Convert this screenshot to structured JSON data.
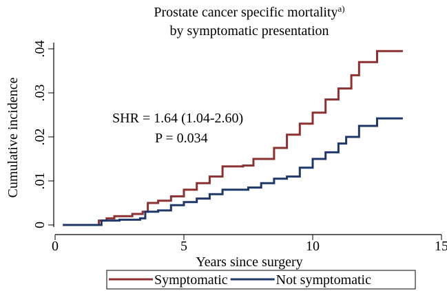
{
  "chart_data": {
    "type": "step",
    "title": "Prostate cancer specific mortality",
    "title_superscript": "a)",
    "subtitle": "by symptomatic presentation",
    "xlabel": "Years since surgery",
    "ylabel": "Cumulative incidence",
    "annotations": [
      "SHR = 1.64 (1.04-2.60)",
      "P = 0.034"
    ],
    "xlim": [
      0,
      15
    ],
    "xticks": [
      0,
      5,
      10,
      15
    ],
    "ylim": [
      0,
      0.04
    ],
    "yticks": [
      0,
      {
        "value": 0.01,
        "label": ".01"
      },
      {
        "value": 0.02,
        "label": ".02"
      },
      {
        "value": 0.03,
        "label": ".03"
      },
      {
        "value": 0.04,
        "label": ".04"
      }
    ],
    "legend": "bottom",
    "series": [
      {
        "name": "Symptomatic",
        "color": "#8b3131",
        "x": [
          0.3,
          1.5,
          1.7,
          2.0,
          2.3,
          3.0,
          3.4,
          3.6,
          4.0,
          4.5,
          5.0,
          5.5,
          6.0,
          6.5,
          7.3,
          7.7,
          8.5,
          9.0,
          9.5,
          10.0,
          10.5,
          11.0,
          11.5,
          11.8,
          12.5,
          13.5
        ],
        "values": [
          0,
          0,
          0.001,
          0.0015,
          0.002,
          0.0025,
          0.003,
          0.005,
          0.0055,
          0.0065,
          0.008,
          0.0095,
          0.011,
          0.0133,
          0.0135,
          0.015,
          0.0175,
          0.0205,
          0.023,
          0.0255,
          0.0285,
          0.031,
          0.034,
          0.037,
          0.0395,
          0.0395
        ]
      },
      {
        "name": "Not symptomatic",
        "color": "#1f3769",
        "x": [
          0.3,
          1.5,
          1.8,
          2.5,
          3.3,
          3.5,
          4.0,
          4.5,
          5.0,
          5.5,
          6.0,
          6.5,
          7.5,
          8.0,
          8.5,
          9.0,
          9.5,
          10.0,
          10.5,
          11.0,
          11.3,
          11.8,
          12.5,
          13.5
        ],
        "values": [
          0,
          0,
          0.001,
          0.0012,
          0.0015,
          0.003,
          0.0033,
          0.0045,
          0.0052,
          0.006,
          0.007,
          0.008,
          0.0085,
          0.0095,
          0.0105,
          0.011,
          0.013,
          0.015,
          0.0165,
          0.0185,
          0.02,
          0.0225,
          0.0242,
          0.0242
        ]
      }
    ]
  }
}
